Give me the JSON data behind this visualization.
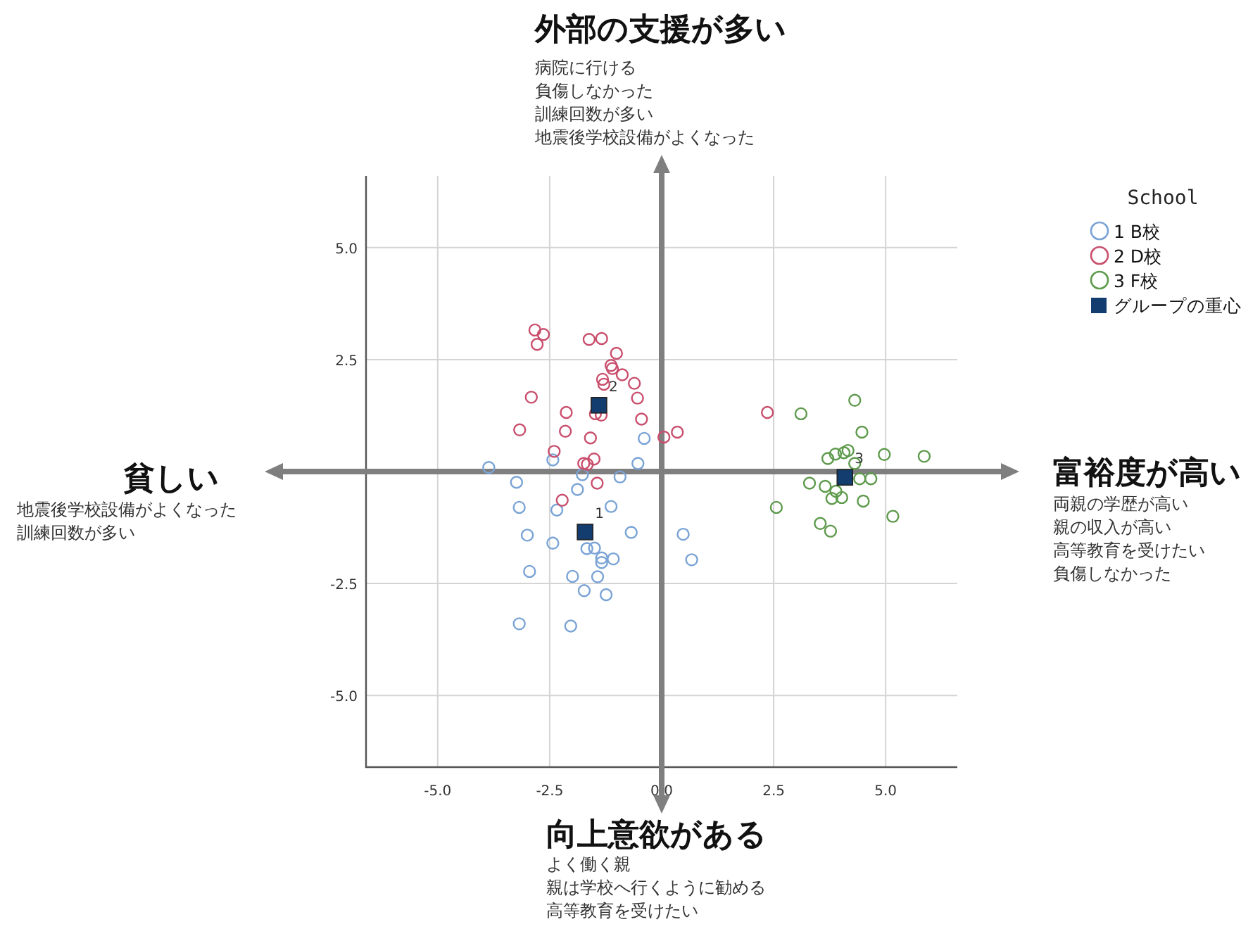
{
  "chart_data": {
    "type": "scatter",
    "xlim": [
      -6.6,
      6.6
    ],
    "ylim": [
      -6.6,
      6.6
    ],
    "xticks": [
      {
        "value": -5,
        "label": "-5.0"
      },
      {
        "value": -2.5,
        "label": "-2.5"
      },
      {
        "value": 0,
        "label": "0.0"
      },
      {
        "value": 2.5,
        "label": "2.5"
      },
      {
        "value": 5,
        "label": "5.0"
      }
    ],
    "yticks": [
      {
        "value": -5,
        "label": "-5.0"
      },
      {
        "value": -2.5,
        "label": "-2.5"
      },
      {
        "value": 2.5,
        "label": "2.5"
      },
      {
        "value": 5,
        "label": "5.0"
      }
    ],
    "grid": true,
    "legend": "top right",
    "legend_title": "School",
    "marker": "circle",
    "annotations": [
      "外部の支援が多い",
      "病院に行ける",
      "負傷しなかった",
      "訓練回数が多い",
      "地震後学校設備がよくなった",
      "貧しい",
      "地震後学校設備がよくなった",
      "訓練回数が多い",
      "富裕度が高い",
      "両親の学歴が高い",
      "親の収入が高い",
      "高等教育を受けたい",
      "負傷しなかった",
      "向上意欲がある",
      "よく働く親",
      "親は学校へ行くように勧める",
      "高等教育を受けたい",
      {
        "text": "1",
        "x": -1.71,
        "y": -1.35
      },
      {
        "text": "2",
        "x": -1.4,
        "y": 1.48
      },
      {
        "text": "3",
        "x": 4.09,
        "y": -0.13
      }
    ],
    "series": [
      {
        "name": "1 B校",
        "color": "#7aa3d6",
        "x": [
          -3.86,
          -3.24,
          -2.43,
          -0.39,
          -0.53,
          -1.77,
          -0.93,
          -1.88,
          -3.18,
          -2.34,
          -1.13,
          -3.0,
          -2.43,
          -0.68,
          0.48,
          0.67,
          -1.67,
          -1.5,
          -1.34,
          -1.34,
          -1.08,
          -2.95,
          -1.99,
          -1.43,
          -1.73,
          -1.24,
          -3.18,
          -2.03
        ],
        "values": [
          0.09,
          -0.24,
          0.26,
          0.74,
          0.18,
          -0.07,
          -0.12,
          -0.4,
          -0.8,
          -0.86,
          -0.78,
          -1.42,
          -1.6,
          -1.36,
          -1.4,
          -1.97,
          -1.72,
          -1.71,
          -1.93,
          -2.03,
          -1.95,
          -2.23,
          -2.34,
          -2.35,
          -2.66,
          -2.75,
          -3.4,
          -3.45
        ]
      },
      {
        "name": "2 D校",
        "color": "#c94f6d",
        "x": [
          -2.83,
          -2.64,
          -2.78,
          -1.62,
          -1.34,
          -1.01,
          -1.13,
          -1.1,
          -0.88,
          -1.32,
          -1.29,
          -0.61,
          -0.54,
          -2.91,
          -2.13,
          -1.48,
          -1.35,
          -0.45,
          -3.17,
          -2.15,
          -1.59,
          0.05,
          0.35,
          -2.4,
          -1.51,
          -1.74,
          -1.66,
          -1.44,
          -2.22,
          2.36
        ],
        "values": [
          3.16,
          3.06,
          2.84,
          2.95,
          2.97,
          2.64,
          2.37,
          2.3,
          2.16,
          2.06,
          1.95,
          1.97,
          1.64,
          1.66,
          1.32,
          1.29,
          1.26,
          1.17,
          0.93,
          0.9,
          0.75,
          0.77,
          0.88,
          0.45,
          0.28,
          0.18,
          0.16,
          -0.26,
          -0.64,
          1.32
        ]
      },
      {
        "name": "3 F校",
        "color": "#5e9a4c",
        "x": [
          4.31,
          3.11,
          4.47,
          3.71,
          3.88,
          4.07,
          4.16,
          4.97,
          5.86,
          4.31,
          3.3,
          3.65,
          3.89,
          3.8,
          4.02,
          4.42,
          4.67,
          4.5,
          2.56,
          5.16,
          3.54,
          3.77
        ],
        "values": [
          1.59,
          1.29,
          0.88,
          0.29,
          0.39,
          0.42,
          0.47,
          0.38,
          0.34,
          0.18,
          -0.26,
          -0.33,
          -0.44,
          -0.6,
          -0.58,
          -0.16,
          -0.16,
          -0.66,
          -0.8,
          -1.0,
          -1.16,
          -1.33
        ]
      },
      {
        "name": "グループの重心",
        "color": "#123d6e",
        "marker": "square",
        "x": [
          -1.71,
          -1.4,
          4.09
        ],
        "values": [
          -1.35,
          1.48,
          -0.13
        ]
      }
    ]
  }
}
